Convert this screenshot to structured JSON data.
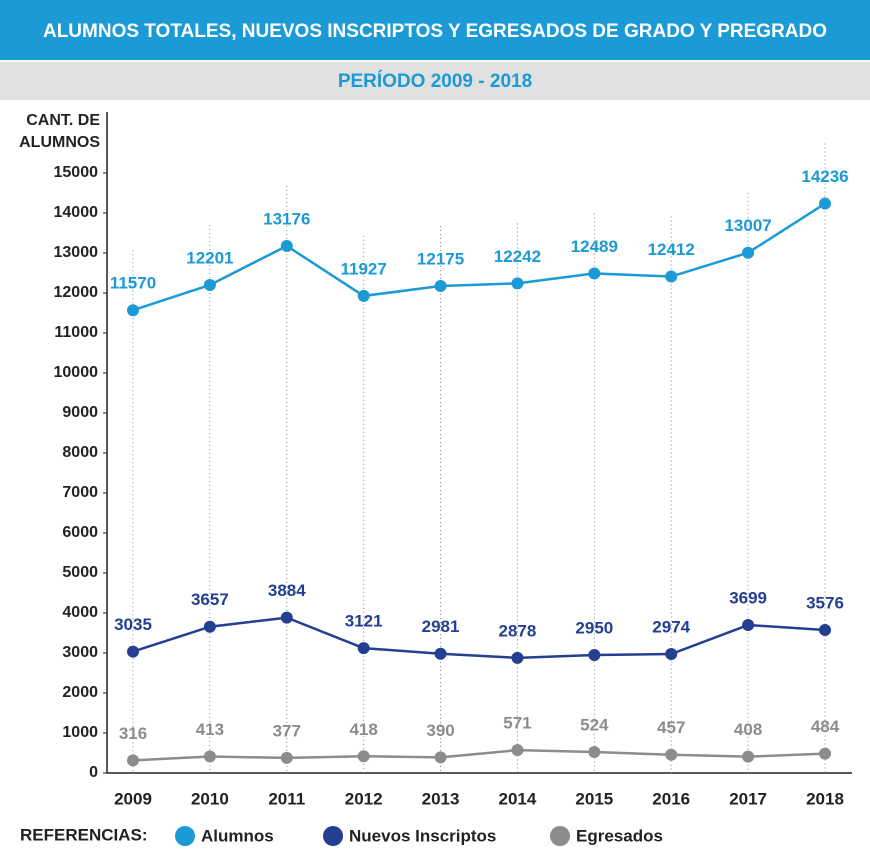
{
  "chart_data": {
    "type": "line",
    "title": "ALUMNOS TOTALES, NUEVOS INSCRIPTOS Y EGRESADOS DE GRADO Y PREGRADO",
    "subtitle": "PERÍODO 2009 - 2018",
    "y_label": [
      "CANT. DE",
      "ALUMNOS"
    ],
    "legend_title": "REFERENCIAS:",
    "categories": [
      "2009",
      "2010",
      "2011",
      "2012",
      "2013",
      "2014",
      "2015",
      "2016",
      "2017",
      "2018"
    ],
    "series": [
      {
        "name": "Alumnos",
        "color": "#1b9ad6",
        "values": [
          11570,
          12201,
          13176,
          11927,
          12175,
          12242,
          12489,
          12412,
          13007,
          14236
        ]
      },
      {
        "name": "Nuevos Inscriptos",
        "color": "#243f92",
        "values": [
          3035,
          3657,
          3884,
          3121,
          2981,
          2878,
          2950,
          2974,
          3699,
          3576
        ]
      },
      {
        "name": "Egresados",
        "color": "#8c8c8c",
        "values": [
          316,
          413,
          377,
          418,
          390,
          571,
          524,
          457,
          408,
          484
        ]
      }
    ],
    "ylim": [
      0,
      15000
    ],
    "yticks": [
      0,
      1000,
      2000,
      3000,
      4000,
      5000,
      6000,
      7000,
      8000,
      9000,
      10000,
      11000,
      12000,
      13000,
      14000,
      15000
    ]
  }
}
